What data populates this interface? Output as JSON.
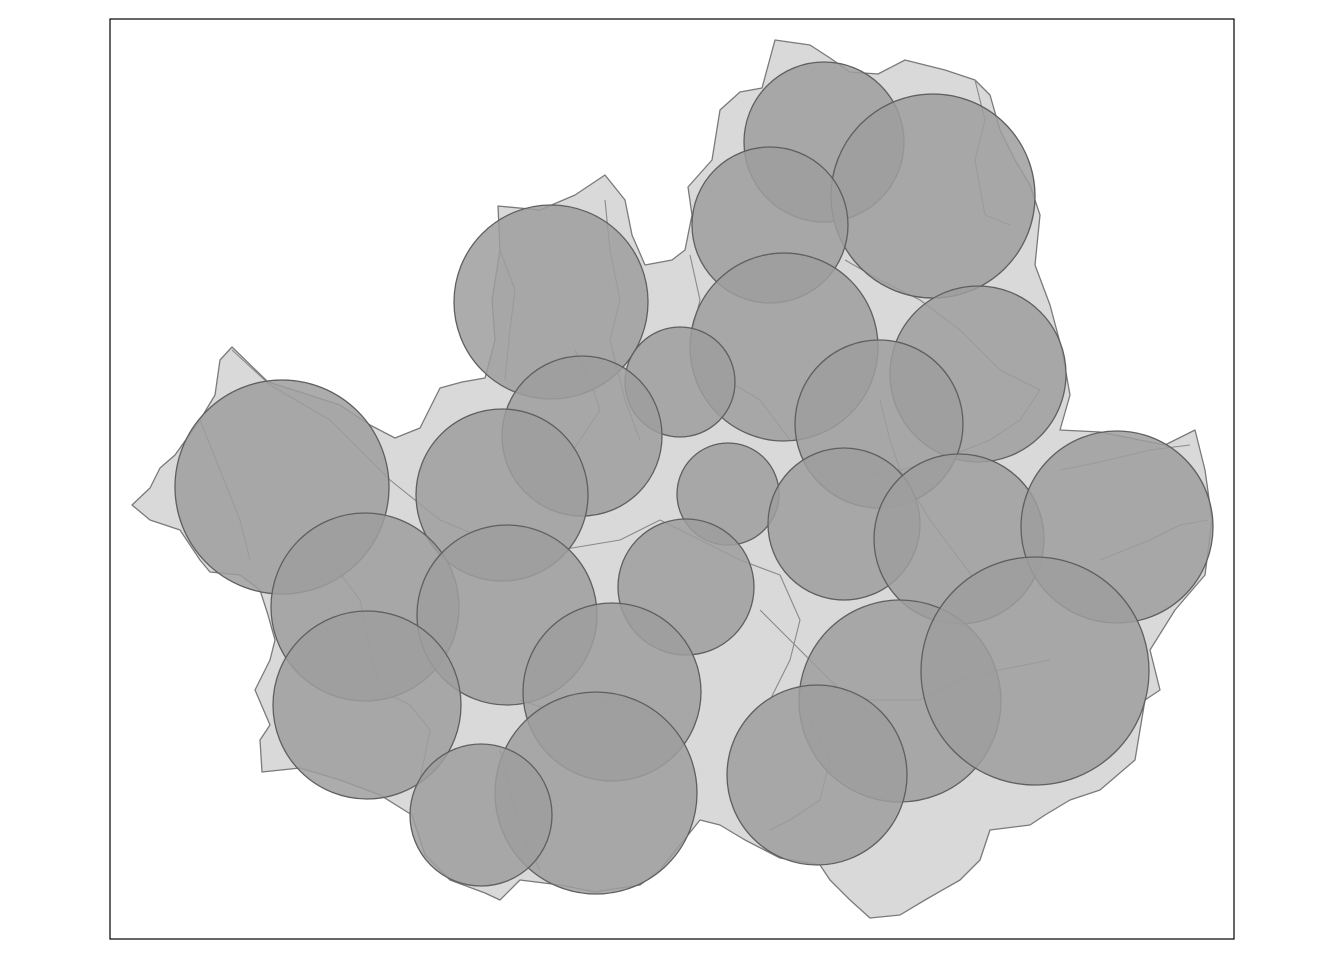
{
  "map": {
    "type": "proportional-symbol-map",
    "basemap_fill": "#d9d9d9",
    "basemap_stroke": "#7a7a7a",
    "symbol_fill": "#9e9e9e",
    "symbol_opacity": 0.85,
    "symbol_stroke": "#5f5f5f",
    "frame_color": "#000000",
    "background": "#ffffff"
  }
}
